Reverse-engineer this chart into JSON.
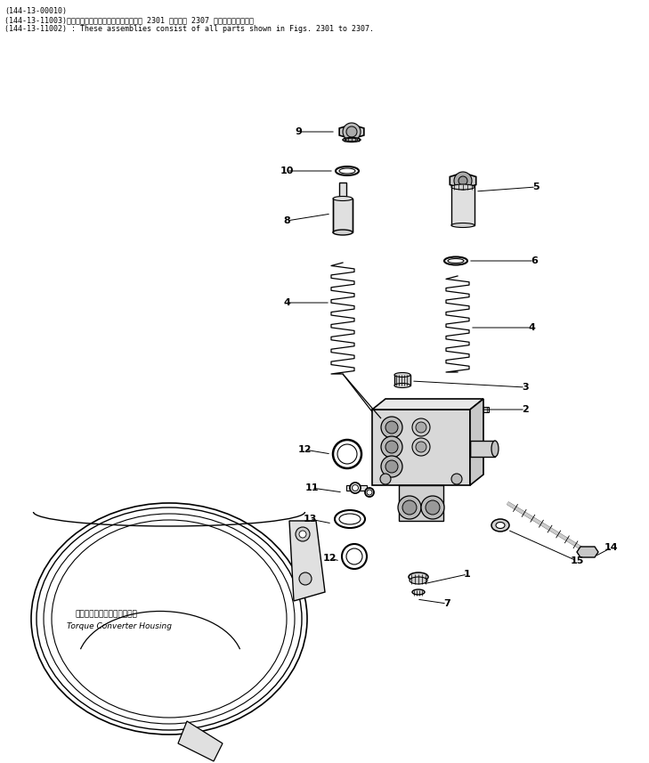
{
  "bg_color": "#ffffff",
  "fig_width": 7.29,
  "fig_height": 8.57,
  "dpi": 100,
  "header_lines": [
    "(144-13-00010)",
    "(144-13-11003)　これらのアセンブリの構成部品は第 2301 図から第 2307 図までですみます．",
    "(144-13-11002) : These assemblies consist of all parts shown in Figs. 2301 to 2307."
  ],
  "torque_converter_label_jp": "トルクコンバータハウジング",
  "torque_converter_label_en": "Torque Converter Housing"
}
